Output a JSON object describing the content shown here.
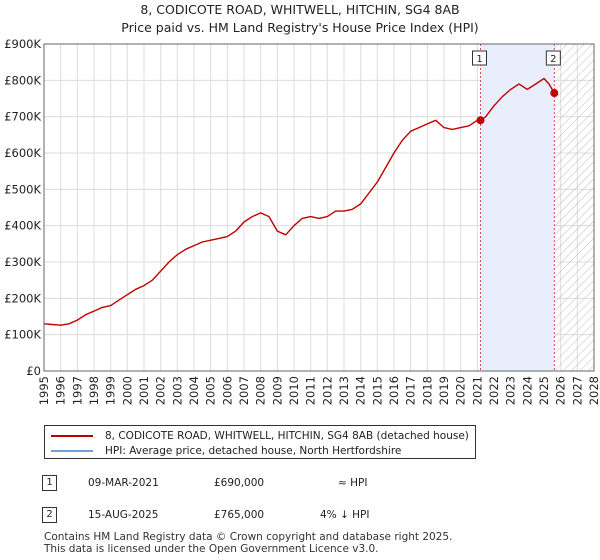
{
  "chart_data": {
    "type": "line",
    "title": "8, CODICOTE ROAD, WHITWELL, HITCHIN, SG4 8AB",
    "subtitle": "Price paid vs. HM Land Registry's House Price Index (HPI)",
    "xlim": [
      1995,
      2028
    ],
    "ylim": [
      0,
      900000
    ],
    "y_ticks": [
      {
        "value": 0,
        "label": "£0"
      },
      {
        "value": 100000,
        "label": "£100K"
      },
      {
        "value": 200000,
        "label": "£200K"
      },
      {
        "value": 300000,
        "label": "£300K"
      },
      {
        "value": 400000,
        "label": "£400K"
      },
      {
        "value": 500000,
        "label": "£500K"
      },
      {
        "value": 600000,
        "label": "£600K"
      },
      {
        "value": 700000,
        "label": "£700K"
      },
      {
        "value": 800000,
        "label": "£800K"
      },
      {
        "value": 900000,
        "label": "£900K"
      }
    ],
    "x_ticks": [
      "1995",
      "1996",
      "1997",
      "1998",
      "1999",
      "2000",
      "2001",
      "2002",
      "2003",
      "2004",
      "2005",
      "2006",
      "2007",
      "2008",
      "2009",
      "2010",
      "2011",
      "2012",
      "2013",
      "2014",
      "2015",
      "2016",
      "2017",
      "2018",
      "2019",
      "2020",
      "2021",
      "2022",
      "2023",
      "2024",
      "2025",
      "2026",
      "2027",
      "2028"
    ],
    "shaded_period": [
      2021.19,
      2025.62
    ],
    "future_hatch_start": 2025.62,
    "grid": true,
    "series": [
      {
        "name": "8, CODICOTE ROAD, WHITWELL, HITCHIN, SG4 8AB (detached house)",
        "color": "#c00000",
        "points": [
          [
            1995.0,
            130000
          ],
          [
            1995.5,
            128000
          ],
          [
            1996.0,
            126000
          ],
          [
            1996.5,
            130000
          ],
          [
            1997.0,
            140000
          ],
          [
            1997.5,
            155000
          ],
          [
            1998.0,
            165000
          ],
          [
            1998.5,
            175000
          ],
          [
            1999.0,
            180000
          ],
          [
            1999.5,
            195000
          ],
          [
            2000.0,
            210000
          ],
          [
            2000.5,
            225000
          ],
          [
            2001.0,
            235000
          ],
          [
            2001.5,
            250000
          ],
          [
            2002.0,
            275000
          ],
          [
            2002.5,
            300000
          ],
          [
            2003.0,
            320000
          ],
          [
            2003.5,
            335000
          ],
          [
            2004.0,
            345000
          ],
          [
            2004.5,
            355000
          ],
          [
            2005.0,
            360000
          ],
          [
            2005.5,
            365000
          ],
          [
            2006.0,
            370000
          ],
          [
            2006.5,
            385000
          ],
          [
            2007.0,
            410000
          ],
          [
            2007.5,
            425000
          ],
          [
            2008.0,
            435000
          ],
          [
            2008.5,
            425000
          ],
          [
            2009.0,
            385000
          ],
          [
            2009.5,
            375000
          ],
          [
            2010.0,
            400000
          ],
          [
            2010.5,
            420000
          ],
          [
            2011.0,
            425000
          ],
          [
            2011.5,
            420000
          ],
          [
            2012.0,
            425000
          ],
          [
            2012.5,
            440000
          ],
          [
            2013.0,
            440000
          ],
          [
            2013.5,
            445000
          ],
          [
            2014.0,
            460000
          ],
          [
            2014.5,
            490000
          ],
          [
            2015.0,
            520000
          ],
          [
            2015.5,
            560000
          ],
          [
            2016.0,
            600000
          ],
          [
            2016.5,
            635000
          ],
          [
            2017.0,
            660000
          ],
          [
            2017.5,
            670000
          ],
          [
            2018.0,
            680000
          ],
          [
            2018.5,
            690000
          ],
          [
            2019.0,
            670000
          ],
          [
            2019.5,
            665000
          ],
          [
            2020.0,
            670000
          ],
          [
            2020.5,
            675000
          ],
          [
            2021.0,
            690000
          ],
          [
            2021.19,
            690000
          ],
          [
            2021.5,
            700000
          ],
          [
            2022.0,
            730000
          ],
          [
            2022.5,
            755000
          ],
          [
            2023.0,
            775000
          ],
          [
            2023.5,
            790000
          ],
          [
            2024.0,
            775000
          ],
          [
            2024.5,
            790000
          ],
          [
            2025.0,
            805000
          ],
          [
            2025.3,
            790000
          ],
          [
            2025.62,
            765000
          ],
          [
            2025.8,
            760000
          ]
        ]
      },
      {
        "name": "HPI: Average price, detached house, North Hertfordshire",
        "color": "#6e9fd8",
        "points": []
      }
    ],
    "markers": [
      {
        "label": "1",
        "x": 2021.19,
        "y": 690000
      },
      {
        "label": "2",
        "x": 2025.62,
        "y": 765000
      }
    ]
  },
  "legend": {
    "property": "8, CODICOTE ROAD, WHITWELL, HITCHIN, SG4 8AB (detached house)",
    "hpi": "HPI: Average price, detached house, North Hertfordshire"
  },
  "sales": [
    {
      "num": "1",
      "date": "09-MAR-2021",
      "price": "£690,000",
      "hpi": "≈ HPI"
    },
    {
      "num": "2",
      "date": "15-AUG-2025",
      "price": "£765,000",
      "hpi": "4% ↓ HPI"
    }
  ],
  "footer": {
    "line1": "Contains HM Land Registry data © Crown copyright and database right 2025.",
    "line2": "This data is licensed under the Open Government Licence v3.0."
  },
  "colors": {
    "property_line": "#c00000",
    "hpi_line": "#6e9fd8",
    "shade": "#e8eefb",
    "grid": "#dcdcdc",
    "marker_line": "#d05050"
  }
}
